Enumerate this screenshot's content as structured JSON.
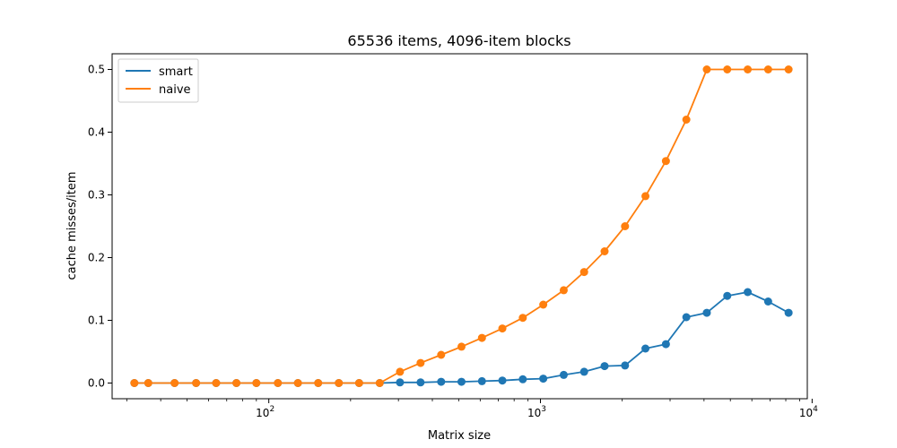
{
  "chart_data": {
    "type": "line",
    "title": "65536 items, 4096-item blocks",
    "xlabel": "Matrix size",
    "ylabel": "cache misses/item",
    "xscale": "log",
    "xlim": [
      26.5,
      9600
    ],
    "ylim": [
      -0.025,
      0.525
    ],
    "grid": false,
    "legend": "top-left",
    "x_ticks": [
      {
        "value": 100,
        "base": "10",
        "exp": "2"
      },
      {
        "value": 1000,
        "base": "10",
        "exp": "3"
      },
      {
        "value": 10000,
        "base": "10",
        "exp": "4"
      }
    ],
    "y_ticks": [
      "0.0",
      "0.1",
      "0.2",
      "0.3",
      "0.4",
      "0.5"
    ],
    "x": [
      32,
      36,
      45,
      54,
      64,
      76,
      90,
      108,
      128,
      152,
      181,
      215,
      256,
      304,
      362,
      431,
      512,
      609,
      724,
      861,
      1024,
      1218,
      1448,
      1722,
      2048,
      2435,
      2896,
      3444,
      4096,
      4871,
      5793,
      6889,
      8192
    ],
    "series": [
      {
        "name": "smart",
        "color": "#1f77b4",
        "values": [
          0,
          0,
          0,
          0,
          0,
          0,
          0,
          0,
          0,
          0,
          0,
          0,
          0,
          0.001,
          0.001,
          0.002,
          0.002,
          0.003,
          0.004,
          0.006,
          0.007,
          0.013,
          0.018,
          0.027,
          0.028,
          0.055,
          0.062,
          0.105,
          0.112,
          0.139,
          0.145,
          0.13,
          0.112
        ]
      },
      {
        "name": "naive",
        "color": "#ff7f0e",
        "values": [
          0,
          0,
          0,
          0,
          0,
          0,
          0,
          0,
          0,
          0,
          0,
          0,
          0,
          0.018,
          0.032,
          0.045,
          0.058,
          0.072,
          0.087,
          0.104,
          0.125,
          0.148,
          0.177,
          0.21,
          0.25,
          0.298,
          0.354,
          0.42,
          0.5,
          0.5,
          0.5,
          0.5,
          0.5
        ]
      }
    ]
  }
}
